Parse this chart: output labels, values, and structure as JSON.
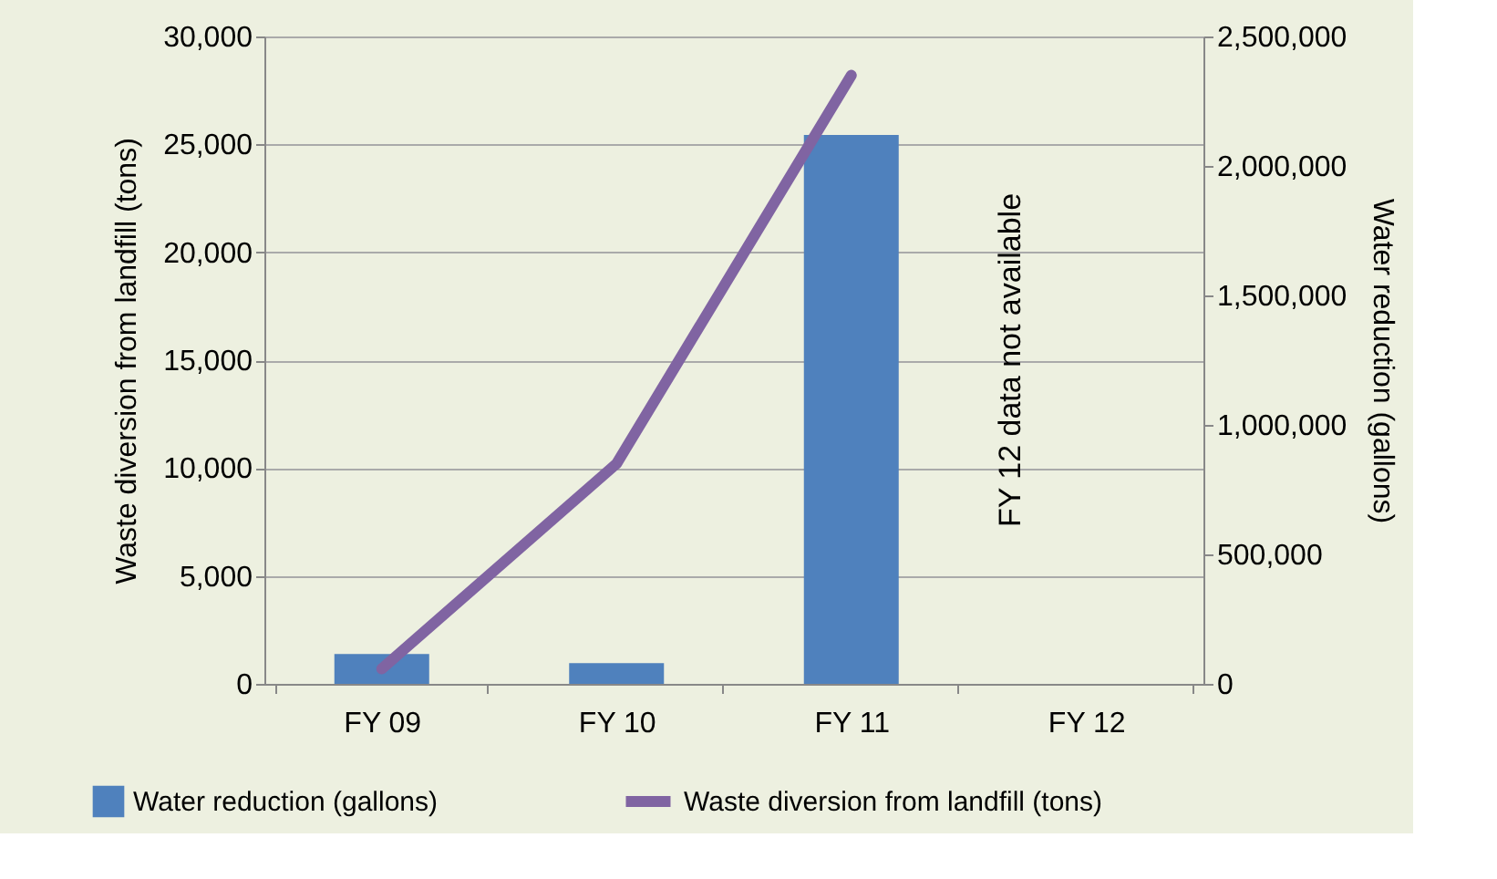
{
  "chart_data": {
    "type": "bar",
    "categories": [
      "FY 09",
      "FY 10",
      "FY 11",
      "FY 12"
    ],
    "ylabel": "Waste diversion from landfill (tons)",
    "y2label": "Water reduction (gallons)",
    "series": [
      {
        "name": "Water reduction (gallons)",
        "axis": "y2",
        "color": "#4f81bd",
        "values": [
          115000,
          80000,
          2120000,
          null
        ]
      },
      {
        "name": "Waste diversion from landfill (tons)",
        "type": "line",
        "axis": "y",
        "color": "#8064a2",
        "values": [
          700,
          10200,
          28200,
          null
        ]
      }
    ],
    "ylim": [
      0,
      30000
    ],
    "yticks": [
      {
        "value": 0,
        "label": "0"
      },
      {
        "value": 5000,
        "label": "5,000"
      },
      {
        "value": 10000,
        "label": "10,000"
      },
      {
        "value": 15000,
        "label": "15,000"
      },
      {
        "value": 20000,
        "label": "20,000"
      },
      {
        "value": 25000,
        "label": "25,000"
      },
      {
        "value": 30000,
        "label": "30,000"
      }
    ],
    "y2lim": [
      0,
      2500000
    ],
    "y2ticks": [
      {
        "value": 0,
        "label": "0"
      },
      {
        "value": 500000,
        "label": "500,000"
      },
      {
        "value": 1000000,
        "label": "1,000,000"
      },
      {
        "value": 1500000,
        "label": "1,500,000"
      },
      {
        "value": 2000000,
        "label": "2,000,000"
      },
      {
        "value": 2500000,
        "label": "2,500,000"
      }
    ],
    "annotations": [
      "FY 12 data not available"
    ],
    "grid": "y",
    "legend": "bottom"
  }
}
